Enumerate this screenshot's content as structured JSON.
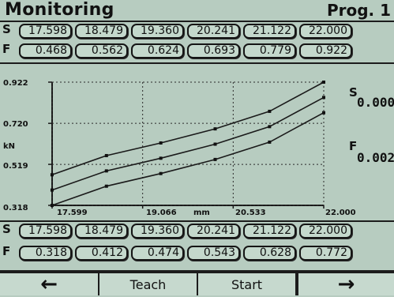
{
  "header": {
    "title": "Monitoring",
    "program": "Prog. 1"
  },
  "top_rows": {
    "s_label": "S",
    "f_label": "F",
    "s_values": [
      "17.598",
      "18.479",
      "19.360",
      "20.241",
      "21.122",
      "22.000"
    ],
    "f_values": [
      "0.468",
      "0.562",
      "0.624",
      "0.693",
      "0.779",
      "0.922"
    ]
  },
  "chart_data": {
    "type": "line",
    "y_unit_label": "kN",
    "x_unit_label": "mm",
    "y_ticks": [
      "0.922",
      "0.720",
      "0.519",
      "0.318"
    ],
    "x_ticks": [
      "17.599",
      "19.066",
      "20.533",
      "22.000"
    ],
    "xlim": [
      17.599,
      22.0
    ],
    "ylim": [
      0.318,
      0.922
    ],
    "x": [
      17.598,
      18.479,
      19.36,
      20.241,
      21.122,
      22.0
    ],
    "series": [
      {
        "values": [
          0.468,
          0.562,
          0.624,
          0.693,
          0.779,
          0.922
        ]
      },
      {
        "values": [
          0.393,
          0.487,
          0.549,
          0.618,
          0.704,
          0.847
        ]
      },
      {
        "values": [
          0.318,
          0.412,
          0.474,
          0.543,
          0.628,
          0.772
        ]
      }
    ],
    "grid": true
  },
  "readout": {
    "s_label": "S",
    "s_value": "0.000",
    "f_label": "F",
    "f_value": "0.002"
  },
  "bottom_rows": {
    "s_label": "S",
    "f_label": "F",
    "s_values": [
      "17.598",
      "18.479",
      "19.360",
      "20.241",
      "21.122",
      "22.000"
    ],
    "f_values": [
      "0.318",
      "0.412",
      "0.474",
      "0.543",
      "0.628",
      "0.772"
    ]
  },
  "buttons": {
    "left": "←",
    "teach": "Teach",
    "start": "Start",
    "right": "→"
  }
}
